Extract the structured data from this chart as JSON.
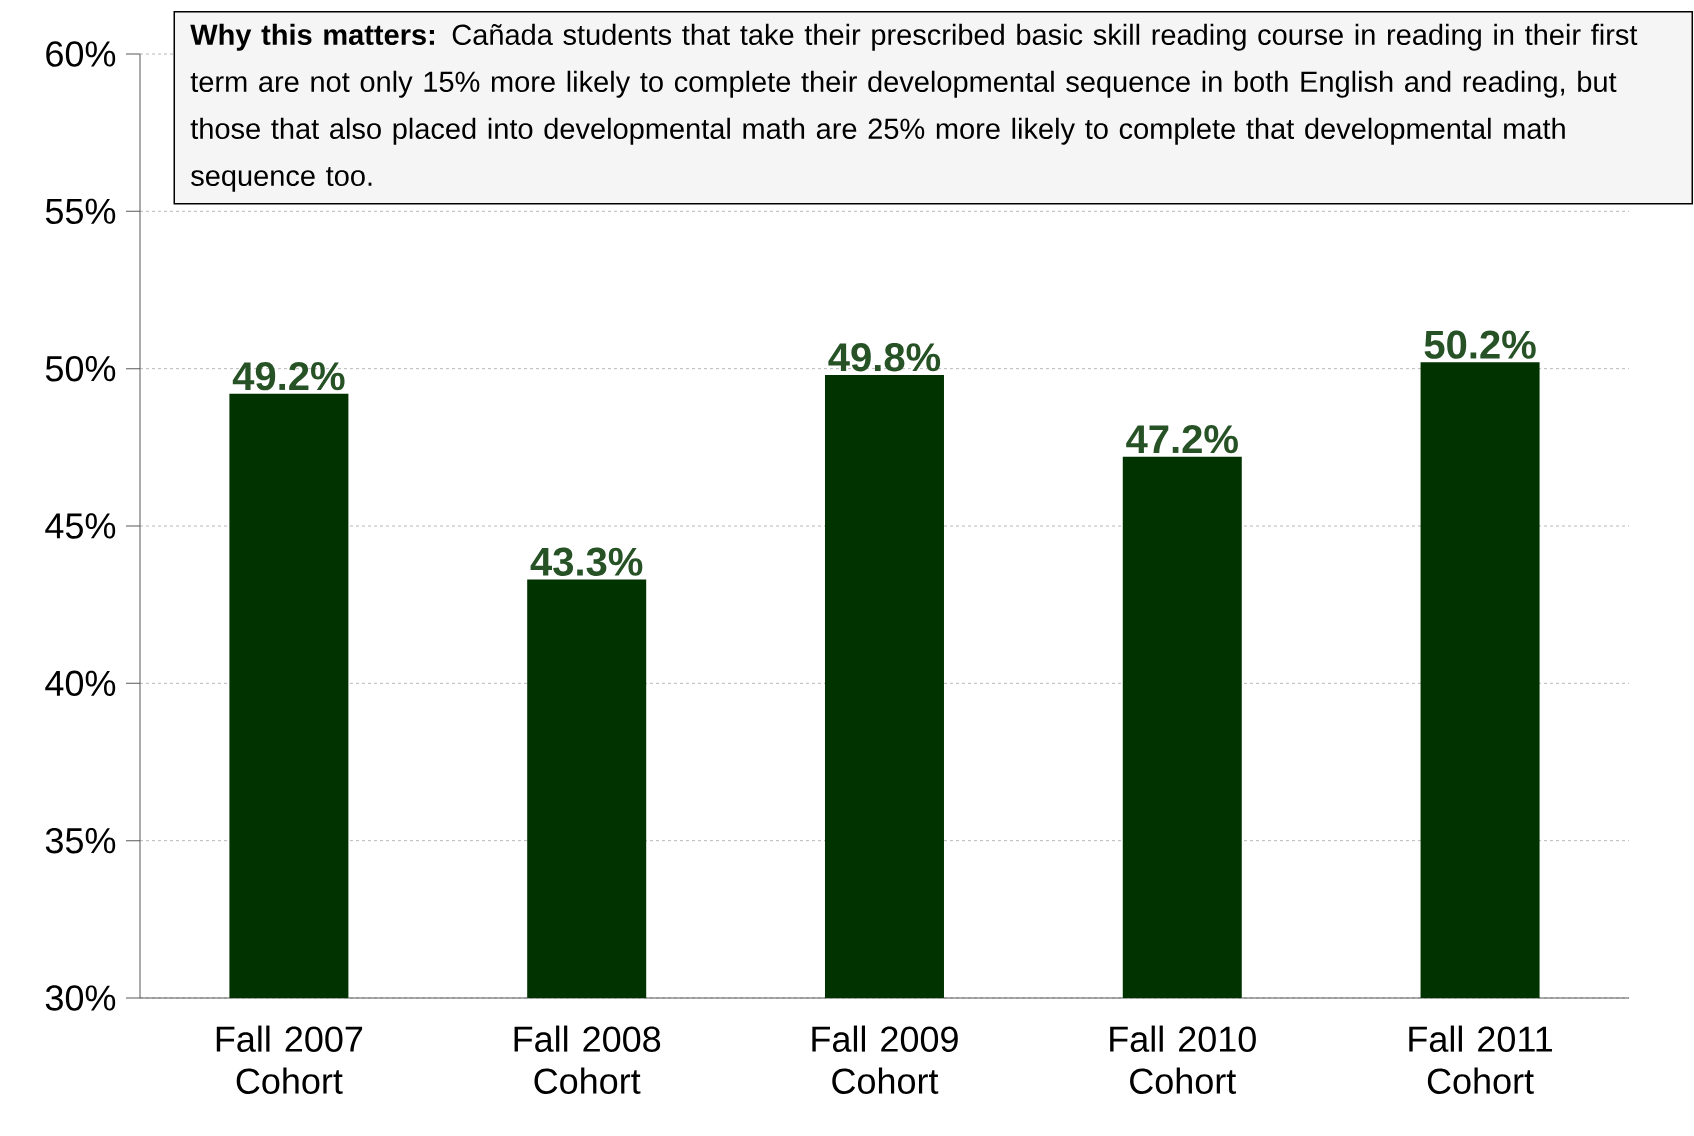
{
  "chart_data": {
    "type": "bar",
    "annotations": [
      "**Why this matters:** Cañada students that take their prescribed basic skill reading course in reading  in their first term are not only 15% more likely to complete their developmental sequence in both English and reading, but those that also placed into developmental math are 25% more likely to complete that developmental math sequence too."
    ],
    "categories": [
      "Fall 2007 Cohort",
      "Fall 2008 Cohort",
      "Fall 2009 Cohort",
      "Fall 2010 Cohort",
      "Fall 2011 Cohort"
    ],
    "values": [
      49.2,
      43.3,
      49.8,
      47.2,
      50.2
    ],
    "value_labels": [
      "49.2%",
      "43.3%",
      "49.8%",
      "47.2%",
      "50.2%"
    ],
    "color": "#003300",
    "ylim": [
      30,
      60
    ],
    "yticks": [
      {
        "value": 30,
        "label": "30%"
      },
      {
        "value": 35,
        "label": "35%"
      },
      {
        "value": 40,
        "label": "40%"
      },
      {
        "value": 45,
        "label": "45%"
      },
      {
        "value": 50,
        "label": "50%"
      },
      {
        "value": 55,
        "label": "55%"
      },
      {
        "value": 60,
        "label": "60%"
      }
    ],
    "grid": "y"
  }
}
